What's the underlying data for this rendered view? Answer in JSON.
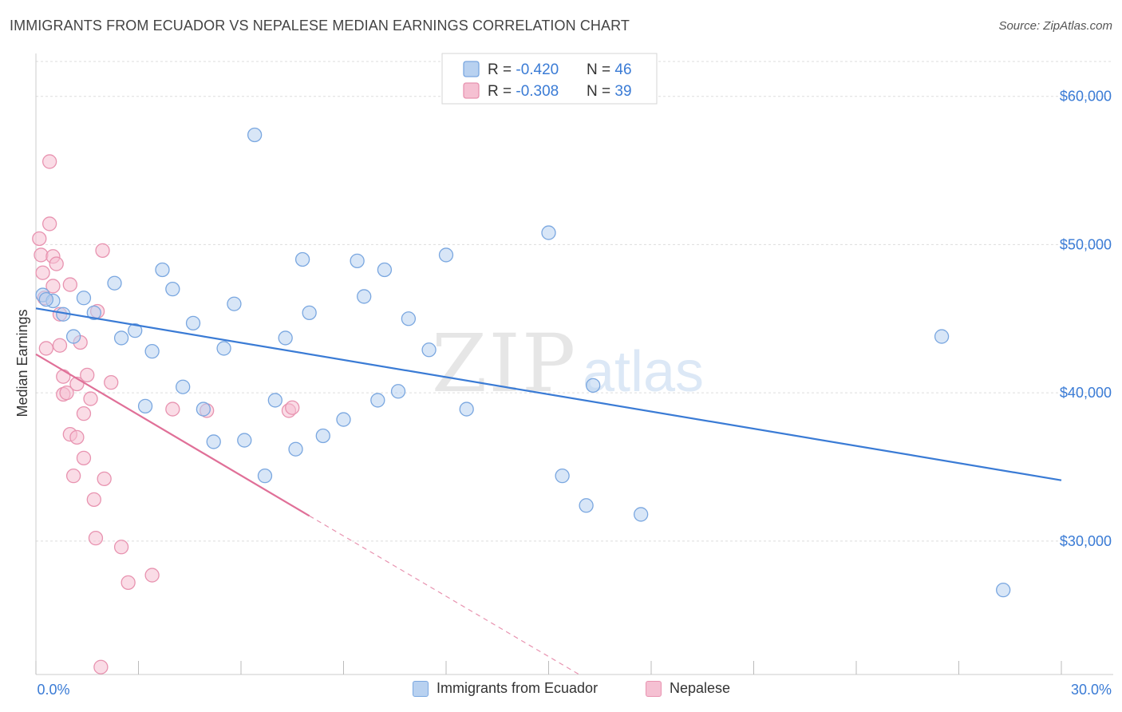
{
  "header": {
    "title": "IMMIGRANTS FROM ECUADOR VS NEPALESE MEDIAN EARNINGS CORRELATION CHART",
    "source": "Source: ZipAtlas.com"
  },
  "watermark": {
    "zip": "ZIP",
    "atlas": "atlas"
  },
  "colors": {
    "blue_fill": "#b8d1f0",
    "blue_stroke": "#7aa7e0",
    "blue_line": "#3a7bd5",
    "pink_fill": "#f5c0d2",
    "pink_stroke": "#e893b0",
    "pink_line": "#e07098",
    "axis_label_blue": "#3a7bd5",
    "grid": "#dddddd"
  },
  "legend_top": {
    "rows": [
      {
        "r_label": "R = ",
        "r_value": "-0.420",
        "n_label": "N = ",
        "n_value": "46",
        "series": "blue"
      },
      {
        "r_label": "R = ",
        "r_value": "-0.308",
        "n_label": "N = ",
        "n_value": "39",
        "series": "pink"
      }
    ]
  },
  "legend_bottom": [
    {
      "label": "Immigrants from Ecuador",
      "series": "blue"
    },
    {
      "label": "Nepalese",
      "series": "pink"
    }
  ],
  "chart_data": {
    "type": "scatter",
    "title": "IMMIGRANTS FROM ECUADOR VS NEPALESE MEDIAN EARNINGS CORRELATION CHART",
    "xlabel": "",
    "ylabel": "Median Earnings",
    "xlim": [
      0,
      30
    ],
    "ylim": [
      21000,
      63000
    ],
    "x_tick_labels": [
      "0.0%",
      "30.0%"
    ],
    "y_ticks": [
      30000,
      40000,
      50000,
      60000
    ],
    "y_tick_labels": [
      "$30,000",
      "$40,000",
      "$50,000",
      "$60,000"
    ],
    "grid": true,
    "legend_position": "top-center",
    "series": [
      {
        "name": "Immigrants from Ecuador",
        "color": "#7aa7e0",
        "points": [
          [
            0.2,
            46.6
          ],
          [
            0.5,
            46.2
          ],
          [
            0.8,
            45.3
          ],
          [
            1.1,
            43.8
          ],
          [
            1.4,
            46.4
          ],
          [
            1.7,
            45.4
          ],
          [
            2.3,
            47.4
          ],
          [
            2.5,
            43.7
          ],
          [
            2.9,
            44.2
          ],
          [
            3.2,
            39.1
          ],
          [
            3.4,
            42.8
          ],
          [
            3.7,
            48.3
          ],
          [
            4.0,
            47.0
          ],
          [
            4.3,
            40.4
          ],
          [
            4.6,
            44.7
          ],
          [
            4.9,
            38.9
          ],
          [
            5.2,
            36.7
          ],
          [
            5.5,
            43.0
          ],
          [
            5.8,
            46.0
          ],
          [
            6.1,
            36.8
          ],
          [
            6.4,
            57.4
          ],
          [
            6.7,
            34.4
          ],
          [
            7.0,
            39.5
          ],
          [
            7.3,
            43.7
          ],
          [
            7.6,
            36.2
          ],
          [
            7.8,
            49.0
          ],
          [
            8.0,
            45.4
          ],
          [
            8.4,
            37.1
          ],
          [
            9.0,
            38.2
          ],
          [
            9.4,
            48.9
          ],
          [
            9.6,
            46.5
          ],
          [
            10.0,
            39.5
          ],
          [
            10.2,
            48.3
          ],
          [
            10.6,
            40.1
          ],
          [
            10.9,
            45.0
          ],
          [
            11.5,
            42.9
          ],
          [
            12.0,
            49.3
          ],
          [
            12.6,
            38.9
          ],
          [
            15.0,
            50.8
          ],
          [
            15.4,
            34.4
          ],
          [
            16.1,
            32.4
          ],
          [
            16.3,
            40.5
          ],
          [
            17.7,
            31.8
          ],
          [
            26.5,
            43.8
          ],
          [
            28.3,
            26.7
          ],
          [
            0.3,
            46.3
          ]
        ],
        "y_unit": "thousand USD",
        "trend": {
          "x": [
            0.0,
            30.0
          ],
          "y": [
            45.7,
            34.1
          ]
        }
      },
      {
        "name": "Nepalese",
        "color": "#e893b0",
        "points": [
          [
            0.1,
            50.4
          ],
          [
            0.15,
            49.3
          ],
          [
            0.2,
            48.1
          ],
          [
            0.25,
            46.4
          ],
          [
            0.3,
            43.0
          ],
          [
            0.4,
            51.4
          ],
          [
            0.4,
            55.6
          ],
          [
            0.5,
            49.2
          ],
          [
            0.5,
            47.2
          ],
          [
            0.6,
            48.7
          ],
          [
            0.7,
            45.3
          ],
          [
            0.7,
            43.2
          ],
          [
            0.8,
            41.1
          ],
          [
            0.8,
            39.9
          ],
          [
            0.9,
            40.0
          ],
          [
            1.0,
            47.3
          ],
          [
            1.0,
            37.2
          ],
          [
            1.1,
            34.4
          ],
          [
            1.2,
            40.6
          ],
          [
            1.2,
            37.0
          ],
          [
            1.3,
            43.4
          ],
          [
            1.4,
            38.6
          ],
          [
            1.4,
            35.6
          ],
          [
            1.5,
            41.2
          ],
          [
            1.6,
            39.6
          ],
          [
            1.7,
            32.8
          ],
          [
            1.75,
            30.2
          ],
          [
            1.8,
            45.5
          ],
          [
            1.9,
            21.5
          ],
          [
            1.95,
            49.6
          ],
          [
            2.0,
            34.2
          ],
          [
            2.2,
            40.7
          ],
          [
            2.5,
            29.6
          ],
          [
            2.7,
            27.2
          ],
          [
            3.4,
            27.7
          ],
          [
            4.0,
            38.9
          ],
          [
            5.0,
            38.8
          ],
          [
            7.4,
            38.8
          ],
          [
            7.5,
            39.0
          ]
        ],
        "y_unit": "thousand USD",
        "trend": {
          "x": [
            0.0,
            8.0
          ],
          "y": [
            42.6,
            31.7
          ]
        },
        "trend_extension": {
          "x": [
            8.0,
            17.0
          ],
          "y": [
            31.7,
            19.5
          ]
        }
      }
    ]
  }
}
